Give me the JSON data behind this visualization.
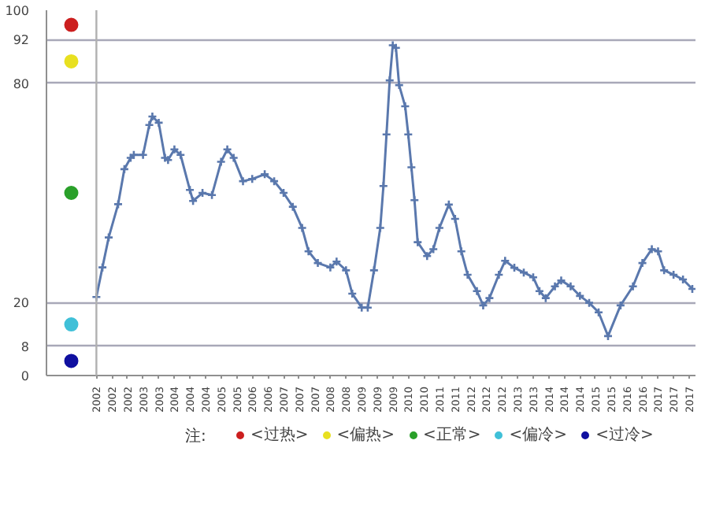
{
  "chart_data": {
    "type": "line",
    "legend_title": "注:",
    "x": [
      "2002-01",
      "2002-03",
      "2002-05",
      "2002-08",
      "2002-10",
      "2002-12",
      "2003-01",
      "2003-04",
      "2003-06",
      "2003-07",
      "2003-09",
      "2003-11",
      "2003-12",
      "2004-02",
      "2004-04",
      "2004-07",
      "2004-08",
      "2004-11",
      "2005-02",
      "2005-05",
      "2005-07",
      "2005-09",
      "2005-12",
      "2006-03",
      "2006-07",
      "2006-10",
      "2007-01",
      "2007-04",
      "2007-07",
      "2007-09",
      "2007-12",
      "2008-04",
      "2008-06",
      "2008-09",
      "2008-11",
      "2009-02",
      "2009-04",
      "2009-06",
      "2009-08",
      "2009-09",
      "2009-10",
      "2009-11",
      "2009-12",
      "2010-01",
      "2010-02",
      "2010-04",
      "2010-05",
      "2010-06",
      "2010-07",
      "2010-08",
      "2010-11",
      "2011-01",
      "2011-03",
      "2011-06",
      "2011-08",
      "2011-10",
      "2011-12",
      "2012-03",
      "2012-05",
      "2012-07",
      "2012-10",
      "2012-12",
      "2013-03",
      "2013-06",
      "2013-09",
      "2013-11",
      "2014-01",
      "2014-04",
      "2014-06",
      "2014-09",
      "2014-12",
      "2015-03",
      "2015-06",
      "2015-09",
      "2016-01",
      "2016-05",
      "2016-08",
      "2016-11",
      "2017-01",
      "2017-03",
      "2017-06",
      "2017-09",
      "2017-12"
    ],
    "series": [
      {
        "type": "scatter",
        "marker": "circle",
        "name": "<过热>",
        "color": "#cc1f1f",
        "x": [
          "2001-05"
        ],
        "values": [
          96
        ]
      },
      {
        "type": "scatter",
        "marker": "circle",
        "name": "<偏热>",
        "color": "#e8e020",
        "x": [
          "2001-05"
        ],
        "values": [
          86
        ]
      },
      {
        "type": "scatter",
        "marker": "circle",
        "name": "<正常>",
        "color": "#2aa02a",
        "x": [
          "2001-05"
        ],
        "values": [
          50
        ]
      },
      {
        "type": "scatter",
        "marker": "circle",
        "name": "<偏冷>",
        "color": "#40c0d8",
        "x": [
          "2001-05"
        ],
        "values": [
          14
        ]
      },
      {
        "type": "scatter",
        "marker": "circle",
        "name": "<过冷>",
        "color": "#1010a0",
        "x": [
          "2001-05"
        ],
        "values": [
          4
        ]
      },
      {
        "color": "#5a78ad",
        "values": [
          21.5,
          29.6,
          37.8,
          46.9,
          56.5,
          59.6,
          60.4,
          60.4,
          68.6,
          70.9,
          69.2,
          59.6,
          59,
          61.9,
          60.4,
          50.8,
          47.8,
          50,
          49.4,
          58.5,
          61.9,
          59.6,
          53.2,
          53.8,
          55.1,
          53.2,
          50,
          46.2,
          40.4,
          34,
          30.8,
          29.6,
          31.2,
          28.8,
          22.4,
          18.6,
          18.6,
          28.8,
          40.4,
          51.9,
          66,
          80.8,
          90.4,
          89.7,
          79.5,
          73.7,
          66,
          57,
          48,
          36.5,
          32.7,
          34.6,
          40.4,
          46.8,
          42.9,
          34,
          27.6,
          23.1,
          19.2,
          21.2,
          27.6,
          31.4,
          29.5,
          28.2,
          26.9,
          23.1,
          21.2,
          24.4,
          26,
          24.4,
          21.8,
          19.9,
          17.3,
          10.8,
          19.2,
          24.4,
          30.8,
          34.6,
          34,
          28.8,
          27.6,
          26.3,
          23.7
        ]
      }
    ],
    "marker": "cross",
    "grid": "y",
    "legend": "bottom",
    "ylim": [
      0,
      100
    ],
    "yticks": [
      0,
      8,
      20,
      80,
      92,
      100
    ],
    "xlim": [
      "2000-09",
      "2018-01"
    ],
    "xticks": [
      {
        "value": "2002-01",
        "label": "2002"
      },
      {
        "value": "2002-06",
        "label": "2002"
      },
      {
        "value": "2002-11",
        "label": "2002"
      },
      {
        "value": "2003-04",
        "label": "2003"
      },
      {
        "value": "2003-09",
        "label": "2003"
      },
      {
        "value": "2004-02",
        "label": "2004"
      },
      {
        "value": "2004-07",
        "label": "2004"
      },
      {
        "value": "2004-12",
        "label": "2004"
      },
      {
        "value": "2005-05",
        "label": "2005"
      },
      {
        "value": "2005-10",
        "label": "2005"
      },
      {
        "value": "2006-03",
        "label": "2006"
      },
      {
        "value": "2006-08",
        "label": "2006"
      },
      {
        "value": "2007-01",
        "label": "2007"
      },
      {
        "value": "2007-06",
        "label": "2007"
      },
      {
        "value": "2007-11",
        "label": "2007"
      },
      {
        "value": "2008-04",
        "label": "2008"
      },
      {
        "value": "2008-09",
        "label": "2008"
      },
      {
        "value": "2009-02",
        "label": "2009"
      },
      {
        "value": "2009-07",
        "label": "2009"
      },
      {
        "value": "2009-12",
        "label": "2009"
      },
      {
        "value": "2010-05",
        "label": "2010"
      },
      {
        "value": "2010-10",
        "label": "2010"
      },
      {
        "value": "2011-03",
        "label": "2011"
      },
      {
        "value": "2011-08",
        "label": "2011"
      },
      {
        "value": "2012-01",
        "label": "2012"
      },
      {
        "value": "2012-06",
        "label": "2012"
      },
      {
        "value": "2012-11",
        "label": "2012"
      },
      {
        "value": "2013-04",
        "label": "2013"
      },
      {
        "value": "2013-09",
        "label": "2013"
      },
      {
        "value": "2014-02",
        "label": "2014"
      },
      {
        "value": "2014-07",
        "label": "2014"
      },
      {
        "value": "2014-12",
        "label": "2014"
      },
      {
        "value": "2015-05",
        "label": "2015"
      },
      {
        "value": "2015-10",
        "label": "2015"
      },
      {
        "value": "2016-03",
        "label": "2016"
      },
      {
        "value": "2016-08",
        "label": "2016"
      },
      {
        "value": "2017-01",
        "label": "2017"
      },
      {
        "value": "2017-06",
        "label": "2017"
      },
      {
        "value": "2017-11",
        "label": "2017"
      }
    ],
    "ref_lines": [
      {
        "axis": "x",
        "value": "2002-01",
        "color": "#b0b0b0"
      }
    ]
  }
}
